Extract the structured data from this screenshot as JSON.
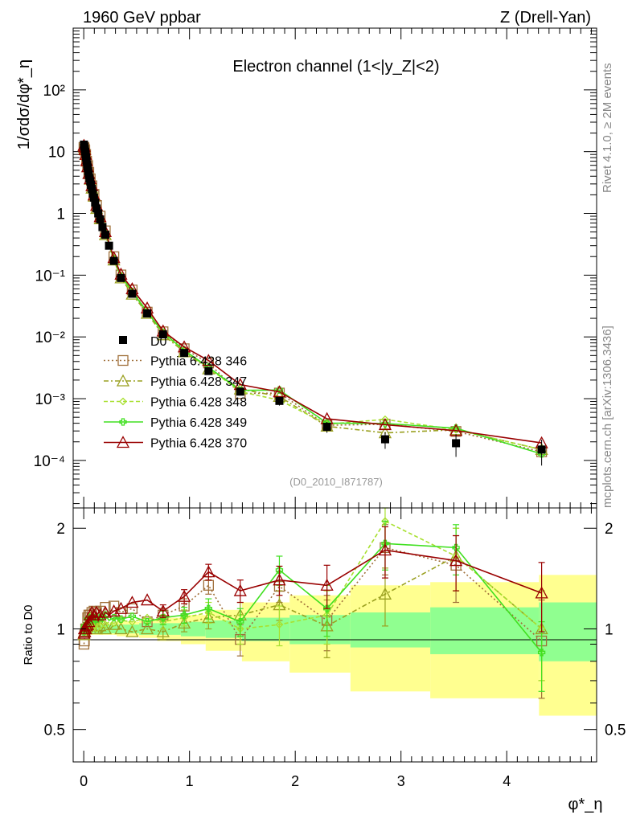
{
  "header": {
    "left": "1960 GeV ppbar",
    "right": "Z (Drell-Yan)"
  },
  "side": {
    "rivet": "Rivet 4.1.0, ≥ 2M events",
    "mcplots": "mcplots.cern.ch [arXiv:1306.3436]"
  },
  "chart_data": {
    "type": "line",
    "title": "Electron channel (1<|y_Z|<2)",
    "xlabel": "φ*_η",
    "ylabel_main": "1/σdσ/dφ*_η",
    "ylabel_ratio": "Ratio to D0",
    "analysis_tag": "(D0_2010_I871787)",
    "xlim": [
      -0.1,
      4.85
    ],
    "ylim_main": [
      1.7e-05,
      1000
    ],
    "ylim_ratio": [
      0.4,
      2.3
    ],
    "x_ticks": [
      0,
      1,
      2,
      3,
      4
    ],
    "x_tick_labels": [
      "0",
      "1",
      "2",
      "3",
      "4"
    ],
    "y_ticks_main": [
      0.0001,
      0.001,
      0.01,
      0.1,
      1,
      10,
      100
    ],
    "y_tick_labels_main": [
      "10⁻⁴",
      "10⁻³",
      "10⁻²",
      "10⁻¹",
      "1",
      "10",
      "10²"
    ],
    "y_ticks_ratio": [
      0.5,
      1,
      2
    ],
    "y_tick_labels_ratio": [
      "0.5",
      "1",
      "2"
    ],
    "bin_edges": [
      0,
      0.004,
      0.008,
      0.012,
      0.016,
      0.02,
      0.024,
      0.029,
      0.034,
      0.039,
      0.045,
      0.051,
      0.057,
      0.064,
      0.072,
      0.081,
      0.091,
      0.102,
      0.114,
      0.128,
      0.145,
      0.165,
      0.189,
      0.219,
      0.258,
      0.312,
      0.391,
      0.524,
      0.695,
      0.918,
      1.153,
      1.496,
      1.947,
      2.522,
      3.277,
      4.305,
      5.5
    ],
    "x": [
      0.002,
      0.006,
      0.01,
      0.014,
      0.018,
      0.022,
      0.027,
      0.032,
      0.037,
      0.042,
      0.048,
      0.054,
      0.061,
      0.068,
      0.077,
      0.086,
      0.097,
      0.108,
      0.121,
      0.137,
      0.155,
      0.177,
      0.204,
      0.239,
      0.285,
      0.352,
      0.458,
      0.6,
      0.75,
      0.95,
      1.18,
      1.48,
      1.85,
      2.3,
      2.85,
      3.52,
      4.33
    ],
    "d0": {
      "values": [
        13.0,
        12.0,
        11.0,
        10.0,
        9.0,
        8.0,
        7.0,
        6.2,
        5.5,
        4.8,
        4.2,
        3.7,
        3.3,
        2.9,
        2.5,
        2.1,
        1.8,
        1.5,
        1.2,
        1.0,
        0.8,
        0.6,
        0.45,
        0.3,
        0.17,
        0.09,
        0.05,
        0.024,
        0.011,
        0.0055,
        0.0028,
        0.0013,
        0.00092,
        0.00035,
        0.00022,
        0.00019,
        0.00015
      ],
      "errors_rel": [
        0.04,
        0.04,
        0.04,
        0.04,
        0.04,
        0.04,
        0.04,
        0.04,
        0.04,
        0.04,
        0.04,
        0.04,
        0.04,
        0.04,
        0.04,
        0.04,
        0.04,
        0.04,
        0.04,
        0.04,
        0.04,
        0.04,
        0.04,
        0.04,
        0.04,
        0.05,
        0.05,
        0.06,
        0.07,
        0.08,
        0.1,
        0.12,
        0.16,
        0.2,
        0.3,
        0.4,
        0.45
      ],
      "band_stat": [
        0.03,
        0.03,
        0.03,
        0.03,
        0.03,
        0.03,
        0.03,
        0.03,
        0.03,
        0.03,
        0.03,
        0.03,
        0.03,
        0.03,
        0.03,
        0.03,
        0.03,
        0.03,
        0.03,
        0.03,
        0.03,
        0.03,
        0.03,
        0.03,
        0.03,
        0.03,
        0.03,
        0.04,
        0.04,
        0.05,
        0.06,
        0.08,
        0.1,
        0.12,
        0.16,
        0.2,
        0.2
      ],
      "band_total": [
        0.04,
        0.04,
        0.04,
        0.04,
        0.04,
        0.04,
        0.04,
        0.04,
        0.04,
        0.04,
        0.04,
        0.04,
        0.04,
        0.04,
        0.04,
        0.04,
        0.04,
        0.04,
        0.04,
        0.04,
        0.04,
        0.04,
        0.04,
        0.04,
        0.04,
        0.05,
        0.05,
        0.06,
        0.08,
        0.1,
        0.14,
        0.2,
        0.26,
        0.35,
        0.38,
        0.45,
        0.45
      ]
    },
    "series": [
      {
        "name": "Pythia 6.428 346",
        "color": "#a0703a",
        "dash": "2,3",
        "marker": "square",
        "ratio": [
          0.9,
          0.92,
          0.96,
          0.98,
          1.0,
          1.02,
          1.0,
          1.04,
          1.08,
          1.0,
          1.1,
          1.03,
          1.1,
          1.05,
          1.12,
          1.05,
          1.13,
          1.08,
          1.12,
          1.05,
          1.13,
          1.08,
          1.16,
          1.1,
          1.17,
          1.12,
          1.15,
          1.05,
          1.1,
          1.17,
          1.35,
          0.93,
          1.34,
          1.06,
          1.75,
          1.55,
          0.92
        ],
        "ratio_err": [
          0.04,
          0.04,
          0.04,
          0.04,
          0.04,
          0.04,
          0.04,
          0.04,
          0.04,
          0.04,
          0.04,
          0.04,
          0.04,
          0.04,
          0.04,
          0.04,
          0.04,
          0.04,
          0.04,
          0.04,
          0.04,
          0.04,
          0.04,
          0.04,
          0.04,
          0.04,
          0.04,
          0.04,
          0.05,
          0.06,
          0.08,
          0.1,
          0.14,
          0.2,
          0.3,
          0.35,
          0.3
        ]
      },
      {
        "name": "Pythia 6.428 347",
        "color": "#9aa020",
        "dash": "6,3,2,3",
        "marker": "triangle",
        "ratio": [
          0.96,
          0.98,
          1.0,
          1.03,
          1.0,
          0.97,
          1.02,
          1.0,
          1.03,
          0.98,
          1.05,
          0.97,
          1.08,
          1.0,
          1.02,
          0.99,
          1.05,
          0.98,
          1.0,
          0.97,
          1.02,
          0.98,
          1.0,
          0.99,
          1.03,
          1.0,
          0.98,
          1.0,
          0.98,
          1.04,
          1.08,
          1.1,
          1.18,
          1.02,
          1.27,
          1.65,
          1.0
        ],
        "ratio_err": [
          0.04,
          0.04,
          0.04,
          0.04,
          0.04,
          0.04,
          0.04,
          0.04,
          0.04,
          0.04,
          0.04,
          0.04,
          0.04,
          0.04,
          0.04,
          0.04,
          0.04,
          0.04,
          0.04,
          0.04,
          0.04,
          0.04,
          0.04,
          0.04,
          0.04,
          0.04,
          0.04,
          0.04,
          0.05,
          0.06,
          0.08,
          0.1,
          0.12,
          0.2,
          0.25,
          0.35,
          0.3
        ]
      },
      {
        "name": "Pythia 6.428 348",
        "color": "#a8e030",
        "dash": "5,3",
        "marker": "diamond",
        "ratio": [
          1.0,
          1.02,
          0.98,
          1.05,
          1.0,
          1.04,
          0.98,
          1.06,
          1.0,
          1.03,
          0.99,
          1.05,
          1.01,
          1.07,
          1.0,
          1.04,
          1.02,
          1.06,
          1.0,
          1.05,
          1.02,
          1.08,
          1.03,
          1.05,
          1.04,
          1.06,
          1.05,
          1.08,
          1.05,
          1.08,
          1.12,
          1.0,
          1.03,
          1.1,
          2.1,
          1.65,
          1.0
        ],
        "ratio_err": [
          0.04,
          0.04,
          0.04,
          0.04,
          0.04,
          0.04,
          0.04,
          0.04,
          0.04,
          0.04,
          0.04,
          0.04,
          0.04,
          0.04,
          0.04,
          0.04,
          0.04,
          0.04,
          0.04,
          0.04,
          0.04,
          0.04,
          0.04,
          0.04,
          0.04,
          0.04,
          0.04,
          0.04,
          0.05,
          0.06,
          0.08,
          0.1,
          0.14,
          0.2,
          0.3,
          0.35,
          0.3
        ]
      },
      {
        "name": "Pythia 6.428 349",
        "color": "#40e020",
        "dash": "",
        "marker": "cross",
        "ratio": [
          0.98,
          1.0,
          1.02,
          1.04,
          1.0,
          1.06,
          1.02,
          1.05,
          1.07,
          1.03,
          1.06,
          1.02,
          1.08,
          1.04,
          1.06,
          1.03,
          1.08,
          1.04,
          1.07,
          1.05,
          1.08,
          1.05,
          1.1,
          1.06,
          1.08,
          1.07,
          1.09,
          1.05,
          1.08,
          1.1,
          1.15,
          1.05,
          1.5,
          1.15,
          1.8,
          1.75,
          0.85
        ],
        "ratio_err": [
          0.04,
          0.04,
          0.04,
          0.04,
          0.04,
          0.04,
          0.04,
          0.04,
          0.04,
          0.04,
          0.04,
          0.04,
          0.04,
          0.04,
          0.04,
          0.04,
          0.04,
          0.04,
          0.04,
          0.04,
          0.04,
          0.04,
          0.04,
          0.04,
          0.04,
          0.04,
          0.04,
          0.04,
          0.05,
          0.06,
          0.08,
          0.1,
          0.15,
          0.2,
          0.3,
          0.3,
          0.2
        ]
      },
      {
        "name": "Pythia 6.428 370",
        "color": "#990000",
        "dash": "",
        "marker": "triangle",
        "ratio": [
          0.97,
          1.0,
          0.98,
          1.02,
          1.0,
          1.04,
          1.02,
          1.06,
          1.03,
          1.08,
          1.05,
          1.06,
          1.1,
          1.05,
          1.12,
          1.06,
          1.1,
          1.08,
          1.12,
          1.06,
          1.1,
          1.08,
          1.12,
          1.1,
          1.13,
          1.15,
          1.2,
          1.22,
          1.13,
          1.25,
          1.48,
          1.3,
          1.4,
          1.35,
          1.72,
          1.6,
          1.28
        ],
        "ratio_err": [
          0.04,
          0.04,
          0.04,
          0.04,
          0.04,
          0.04,
          0.04,
          0.04,
          0.04,
          0.04,
          0.04,
          0.04,
          0.04,
          0.04,
          0.04,
          0.04,
          0.04,
          0.04,
          0.04,
          0.04,
          0.04,
          0.04,
          0.04,
          0.04,
          0.04,
          0.04,
          0.04,
          0.04,
          0.05,
          0.06,
          0.08,
          0.1,
          0.14,
          0.2,
          0.3,
          0.3,
          0.3
        ]
      }
    ],
    "legend": {
      "position": "lower-left",
      "data_label": "D0"
    }
  }
}
